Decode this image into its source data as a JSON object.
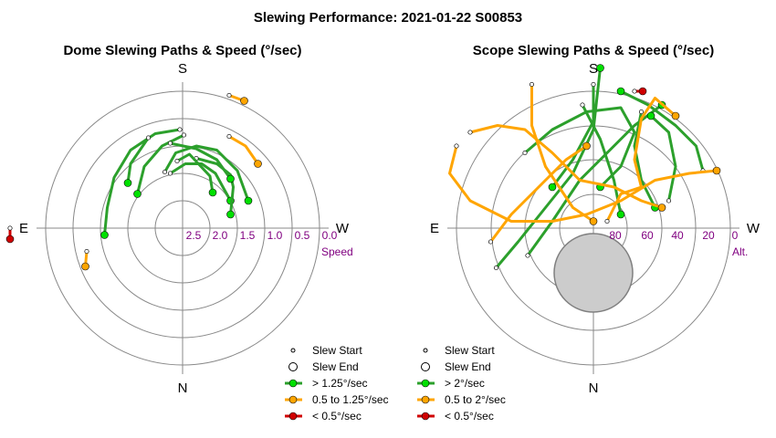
{
  "figure": {
    "title": "Slewing Performance: 2021-01-22 S00853",
    "colors": {
      "fast": "#2ca02c",
      "fast_marker": "#00e000",
      "medium": "#ffa500",
      "slow": "#d00000",
      "ring": "#888888",
      "tick_label": "#800080",
      "exclusion": "#cccccc"
    }
  },
  "chart_data": [
    {
      "type": "scatter",
      "title": "Dome Slewing Paths & Speed (°/sec)",
      "compass": {
        "top": "S",
        "bottom": "N",
        "left": "E",
        "right": "W"
      },
      "radial_label": "Speed",
      "radial_ticks": [
        "2.5",
        "2.0",
        "1.5",
        "1.0",
        "0.5",
        "0.0"
      ],
      "legend": [
        {
          "key": "start",
          "label": "Slew Start"
        },
        {
          "key": "end",
          "label": "Slew End"
        },
        {
          "key": "fast",
          "label": "> 1.25°/sec"
        },
        {
          "key": "medium",
          "label": "0.5 to 1.25°/sec"
        },
        {
          "key": "slow",
          "label": "< 0.5°/sec"
        }
      ],
      "series": [
        {
          "speed_class": "fast",
          "points": [
            [
              -0.13,
              0.41
            ],
            [
              -0.05,
              0.55
            ],
            [
              0.1,
              0.6
            ],
            [
              0.25,
              0.57
            ],
            [
              0.4,
              0.42
            ],
            [
              0.48,
              0.2
            ]
          ]
        },
        {
          "speed_class": "fast",
          "points": [
            [
              0.01,
              0.68
            ],
            [
              -0.15,
              0.6
            ],
            [
              -0.28,
              0.45
            ],
            [
              -0.33,
              0.25
            ]
          ]
        },
        {
          "speed_class": "fast",
          "points": [
            [
              -0.02,
              0.72
            ],
            [
              -0.2,
              0.69
            ],
            [
              -0.38,
              0.57
            ],
            [
              -0.5,
              0.37
            ],
            [
              -0.55,
              0.15
            ],
            [
              -0.57,
              -0.05
            ]
          ]
        },
        {
          "speed_class": "fast",
          "points": [
            [
              -0.09,
              0.4
            ],
            [
              0.02,
              0.47
            ],
            [
              0.14,
              0.47
            ],
            [
              0.24,
              0.4
            ],
            [
              0.3,
              0.29
            ],
            [
              0.35,
              0.2
            ]
          ]
        },
        {
          "speed_class": "fast",
          "points": [
            [
              0.1,
              0.51
            ],
            [
              0.25,
              0.47
            ],
            [
              0.35,
              0.39
            ],
            [
              0.37,
              0.3
            ],
            [
              0.35,
              0.1
            ]
          ]
        },
        {
          "speed_class": "fast",
          "points": [
            [
              -0.09,
              0.62
            ],
            [
              0.1,
              0.58
            ],
            [
              0.25,
              0.5
            ],
            [
              0.35,
              0.36
            ]
          ]
        },
        {
          "speed_class": "fast",
          "points": [
            [
              -0.25,
              0.66
            ],
            [
              -0.38,
              0.47
            ],
            [
              -0.4,
              0.33
            ]
          ]
        },
        {
          "speed_class": "fast",
          "points": [
            [
              -0.04,
              0.49
            ],
            [
              0.05,
              0.54
            ],
            [
              0.2,
              0.38
            ],
            [
              0.22,
              0.26
            ]
          ]
        },
        {
          "speed_class": "medium",
          "points": [
            [
              0.34,
              0.97
            ],
            [
              0.45,
              0.93
            ]
          ]
        },
        {
          "speed_class": "medium",
          "points": [
            [
              0.34,
              0.67
            ],
            [
              0.46,
              0.6
            ],
            [
              0.55,
              0.47
            ]
          ]
        },
        {
          "speed_class": "medium",
          "points": [
            [
              -0.7,
              -0.17
            ],
            [
              -0.71,
              -0.28
            ]
          ]
        },
        {
          "speed_class": "slow",
          "points": [
            [
              -1.26,
              0
            ],
            [
              -1.26,
              -0.08
            ]
          ]
        }
      ]
    },
    {
      "type": "scatter",
      "title": "Scope Slewing Paths & Speed (°/sec)",
      "compass": {
        "top": "S",
        "bottom": "N",
        "left": "E",
        "right": "W"
      },
      "radial_label": "Alt.",
      "radial_ticks": [
        "80",
        "60",
        "40",
        "20",
        "0"
      ],
      "legend": [
        {
          "key": "start",
          "label": "Slew Start"
        },
        {
          "key": "end",
          "label": "Slew End"
        },
        {
          "key": "fast",
          "label": "> 2°/sec"
        },
        {
          "key": "medium",
          "label": "0.5 to 2°/sec"
        },
        {
          "key": "slow",
          "label": "< 0.5°/sec"
        }
      ],
      "series": [
        {
          "speed_class": "fast",
          "points": [
            [
              -0.71,
              -0.29
            ],
            [
              -0.55,
              -0.1
            ],
            [
              -0.35,
              0.15
            ],
            [
              -0.15,
              0.4
            ],
            [
              0.0,
              0.72
            ],
            [
              0.05,
              1.17
            ]
          ]
        },
        {
          "speed_class": "fast",
          "points": [
            [
              -0.48,
              -0.2
            ],
            [
              -0.3,
              0.05
            ],
            [
              -0.1,
              0.35
            ],
            [
              0.1,
              0.55
            ],
            [
              0.3,
              0.75
            ],
            [
              0.5,
              0.9
            ]
          ]
        },
        {
          "speed_class": "fast",
          "points": [
            [
              -0.08,
              0.9
            ],
            [
              0.05,
              0.65
            ],
            [
              0.15,
              0.35
            ],
            [
              0.2,
              0.1
            ]
          ]
        },
        {
          "speed_class": "fast",
          "points": [
            [
              0.8,
              0.42
            ],
            [
              0.75,
              0.6
            ],
            [
              0.6,
              0.75
            ],
            [
              0.4,
              0.9
            ],
            [
              0.2,
              1.0
            ]
          ]
        },
        {
          "speed_class": "fast",
          "points": [
            [
              0.55,
              0.2
            ],
            [
              0.6,
              0.45
            ],
            [
              0.55,
              0.7
            ],
            [
              0.42,
              0.82
            ]
          ]
        },
        {
          "speed_class": "fast",
          "points": [
            [
              -0.5,
              0.55
            ],
            [
              -0.3,
              0.72
            ],
            [
              -0.05,
              0.85
            ],
            [
              0.2,
              0.88
            ],
            [
              0.3,
              0.7
            ],
            [
              0.2,
              0.45
            ],
            [
              0.05,
              0.3
            ]
          ]
        },
        {
          "speed_class": "fast",
          "points": [
            [
              0.0,
              1.05
            ],
            [
              0.0,
              0.78
            ],
            [
              -0.15,
              0.5
            ],
            [
              -0.3,
              0.3
            ]
          ]
        },
        {
          "speed_class": "fast",
          "points": [
            [
              0.35,
              0.85
            ],
            [
              0.3,
              0.6
            ],
            [
              0.35,
              0.35
            ],
            [
              0.45,
              0.15
            ]
          ]
        },
        {
          "speed_class": "medium",
          "points": [
            [
              -1.0,
              0.6
            ],
            [
              -1.05,
              0.4
            ],
            [
              -0.9,
              0.2
            ],
            [
              -0.6,
              0.05
            ],
            [
              -0.3,
              0.05
            ],
            [
              -0.05,
              0.1
            ],
            [
              0.2,
              0.2
            ],
            [
              0.45,
              0.35
            ],
            [
              0.7,
              0.4
            ],
            [
              0.9,
              0.42
            ]
          ]
        },
        {
          "speed_class": "medium",
          "points": [
            [
              -0.9,
              0.7
            ],
            [
              -0.7,
              0.75
            ],
            [
              -0.5,
              0.72
            ],
            [
              -0.3,
              0.55
            ],
            [
              -0.1,
              0.35
            ],
            [
              0.15,
              0.3
            ],
            [
              0.35,
              0.2
            ],
            [
              0.5,
              0.15
            ]
          ]
        },
        {
          "speed_class": "medium",
          "points": [
            [
              -0.45,
              1.05
            ],
            [
              -0.45,
              0.75
            ],
            [
              -0.35,
              0.45
            ],
            [
              -0.15,
              0.15
            ],
            [
              0.0,
              0.05
            ]
          ]
        },
        {
          "speed_class": "medium",
          "points": [
            [
              0.1,
              0.05
            ],
            [
              0.2,
              0.25
            ],
            [
              0.35,
              0.3
            ],
            [
              0.3,
              0.5
            ],
            [
              0.35,
              0.8
            ],
            [
              0.45,
              0.95
            ],
            [
              0.6,
              0.82
            ]
          ]
        },
        {
          "speed_class": "medium",
          "points": [
            [
              -0.75,
              -0.1
            ],
            [
              -0.6,
              0.1
            ],
            [
              -0.4,
              0.3
            ],
            [
              -0.2,
              0.5
            ],
            [
              -0.05,
              0.6
            ]
          ]
        },
        {
          "speed_class": "slow",
          "points": [
            [
              0.3,
              1.0
            ],
            [
              0.36,
              1.0
            ]
          ]
        }
      ]
    }
  ]
}
